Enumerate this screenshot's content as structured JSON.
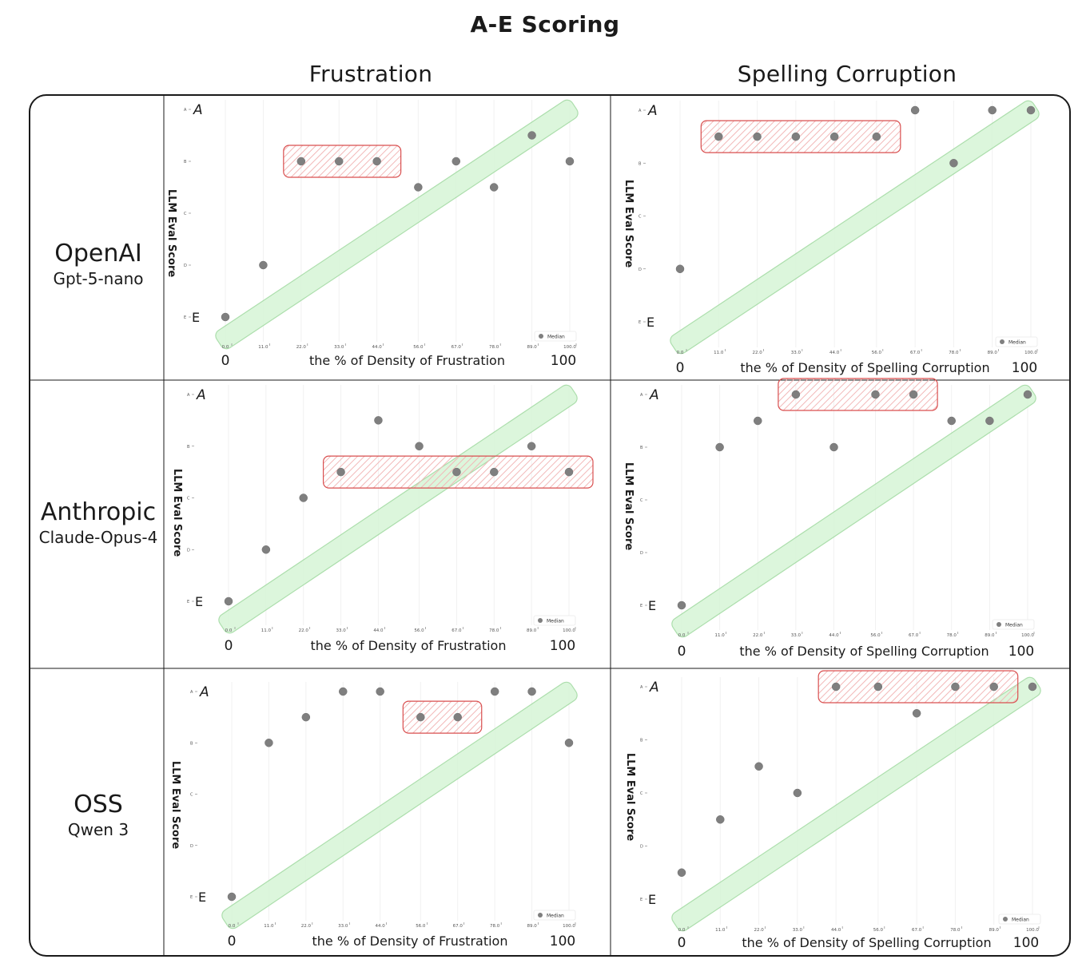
{
  "title": "A-E Scoring",
  "columns": [
    "Frustration",
    "Spelling Corruption"
  ],
  "rows": [
    {
      "provider": "OpenAI",
      "model": "Gpt-5-nano"
    },
    {
      "provider": "Anthropic",
      "model": "Claude-Opus-4"
    },
    {
      "provider": "OSS",
      "model": "Qwen 3"
    }
  ],
  "legend_label": "Median",
  "colors": {
    "point": "#7f7f7f",
    "trend_fill": "#d7f5d7",
    "trend_stroke": "#9ed99e",
    "highlight": "#d94f4f",
    "frame": "#1a1a1a"
  },
  "chart_data": [
    {
      "type": "scatter",
      "row": "OpenAI",
      "column": "Frustration",
      "xlabel": "the % of Density of Frustration",
      "ylabel": "LLM Eval Score",
      "x_ticks": [
        "0.0",
        "11.0",
        "22.0",
        "33.0",
        "44.0",
        "56.0",
        "67.0",
        "78.0",
        "89.0",
        "100.0"
      ],
      "y_ticks": [
        "A",
        "B",
        "C",
        "D",
        "E"
      ],
      "x_range_labels": [
        "0",
        "100"
      ],
      "y_range_labels": [
        "A",
        "E"
      ],
      "legend": "Median",
      "points": [
        [
          0,
          "E"
        ],
        [
          11,
          "D"
        ],
        [
          22,
          "B"
        ],
        [
          33,
          "B"
        ],
        [
          44,
          "B"
        ],
        [
          56,
          "B-C"
        ],
        [
          67,
          "B"
        ],
        [
          78,
          "B-C"
        ],
        [
          89,
          "A-B"
        ],
        [
          100,
          "B"
        ]
      ],
      "highlighted_x": [
        22,
        33,
        44
      ]
    },
    {
      "type": "scatter",
      "row": "OpenAI",
      "column": "Spelling Corruption",
      "xlabel": "the % of Density of Spelling Corruption",
      "ylabel": "LLM Eval Score",
      "x_ticks": [
        "0.0",
        "11.0",
        "22.0",
        "33.0",
        "44.0",
        "56.0",
        "67.0",
        "78.0",
        "89.0",
        "100.0"
      ],
      "y_ticks": [
        "A",
        "B",
        "C",
        "D",
        "E"
      ],
      "x_range_labels": [
        "0",
        "100"
      ],
      "y_range_labels": [
        "A",
        "E"
      ],
      "legend": "Median",
      "points": [
        [
          0,
          "D"
        ],
        [
          11,
          "A-B"
        ],
        [
          22,
          "A-B"
        ],
        [
          33,
          "A-B"
        ],
        [
          44,
          "A-B"
        ],
        [
          56,
          "A-B"
        ],
        [
          67,
          "A"
        ],
        [
          78,
          "B"
        ],
        [
          89,
          "A"
        ],
        [
          100,
          "A"
        ]
      ],
      "highlighted_x": [
        11,
        22,
        33,
        44,
        56
      ]
    },
    {
      "type": "scatter",
      "row": "Anthropic",
      "column": "Frustration",
      "xlabel": "the % of Density of Frustration",
      "ylabel": "LLM Eval Score",
      "x_ticks": [
        "0.0",
        "11.0",
        "22.0",
        "33.0",
        "44.0",
        "56.0",
        "67.0",
        "78.0",
        "89.0",
        "100.0"
      ],
      "y_ticks": [
        "A",
        "B",
        "C",
        "D",
        "E"
      ],
      "x_range_labels": [
        "0",
        "100"
      ],
      "y_range_labels": [
        "A",
        "E"
      ],
      "legend": "Median",
      "points": [
        [
          0,
          "E"
        ],
        [
          11,
          "D"
        ],
        [
          22,
          "C"
        ],
        [
          33,
          "B-C"
        ],
        [
          44,
          "A-B"
        ],
        [
          56,
          "B"
        ],
        [
          67,
          "B-C"
        ],
        [
          78,
          "B-C"
        ],
        [
          89,
          "B"
        ],
        [
          100,
          "B-C"
        ]
      ],
      "highlighted_x": [
        33,
        67,
        78,
        100
      ]
    },
    {
      "type": "scatter",
      "row": "Anthropic",
      "column": "Spelling Corruption",
      "xlabel": "the % of Density of Spelling Corruption",
      "ylabel": "LLM Eval Score",
      "x_ticks": [
        "0.0",
        "11.0",
        "22.0",
        "33.0",
        "44.0",
        "56.0",
        "67.0",
        "78.0",
        "89.0",
        "100.0"
      ],
      "y_ticks": [
        "A",
        "B",
        "C",
        "D",
        "E"
      ],
      "x_range_labels": [
        "0",
        "100"
      ],
      "y_range_labels": [
        "A",
        "E"
      ],
      "legend": "Median",
      "points": [
        [
          0,
          "E"
        ],
        [
          11,
          "B"
        ],
        [
          22,
          "A-B"
        ],
        [
          33,
          "A"
        ],
        [
          44,
          "B"
        ],
        [
          56,
          "A"
        ],
        [
          67,
          "A"
        ],
        [
          78,
          "A-B"
        ],
        [
          89,
          "A-B"
        ],
        [
          100,
          "A"
        ]
      ],
      "highlighted_x": [
        33,
        56,
        67
      ]
    },
    {
      "type": "scatter",
      "row": "OSS",
      "column": "Frustration",
      "xlabel": "the % of Density of Frustration",
      "ylabel": "LLM Eval Score",
      "x_ticks": [
        "0.0",
        "11.0",
        "22.0",
        "33.0",
        "44.0",
        "56.0",
        "67.0",
        "78.0",
        "89.0",
        "100.0"
      ],
      "y_ticks": [
        "A",
        "B",
        "C",
        "D",
        "E"
      ],
      "x_range_labels": [
        "0",
        "100"
      ],
      "y_range_labels": [
        "A",
        "E"
      ],
      "legend": "Median",
      "points": [
        [
          0,
          "E"
        ],
        [
          11,
          "B"
        ],
        [
          22,
          "A-B"
        ],
        [
          33,
          "A"
        ],
        [
          44,
          "A"
        ],
        [
          56,
          "A-B"
        ],
        [
          67,
          "A-B"
        ],
        [
          78,
          "A"
        ],
        [
          89,
          "A"
        ],
        [
          100,
          "B"
        ]
      ],
      "highlighted_x": [
        56,
        67
      ]
    },
    {
      "type": "scatter",
      "row": "OSS",
      "column": "Spelling Corruption",
      "xlabel": "the % of Density of Spelling Corruption",
      "ylabel": "LLM Eval Score",
      "x_ticks": [
        "0.0",
        "11.0",
        "22.0",
        "33.0",
        "44.0",
        "56.0",
        "67.0",
        "78.0",
        "89.0",
        "100.0"
      ],
      "y_ticks": [
        "A",
        "B",
        "C",
        "D",
        "E"
      ],
      "x_range_labels": [
        "0",
        "100"
      ],
      "y_range_labels": [
        "A",
        "E"
      ],
      "legend": "Median",
      "points": [
        [
          0,
          "D-E"
        ],
        [
          11,
          "C-D"
        ],
        [
          22,
          "B-C"
        ],
        [
          33,
          "C"
        ],
        [
          44,
          "A"
        ],
        [
          56,
          "A"
        ],
        [
          67,
          "A-B"
        ],
        [
          78,
          "A"
        ],
        [
          89,
          "A"
        ],
        [
          100,
          "A"
        ]
      ],
      "highlighted_x": [
        44,
        56,
        78,
        89
      ]
    }
  ]
}
